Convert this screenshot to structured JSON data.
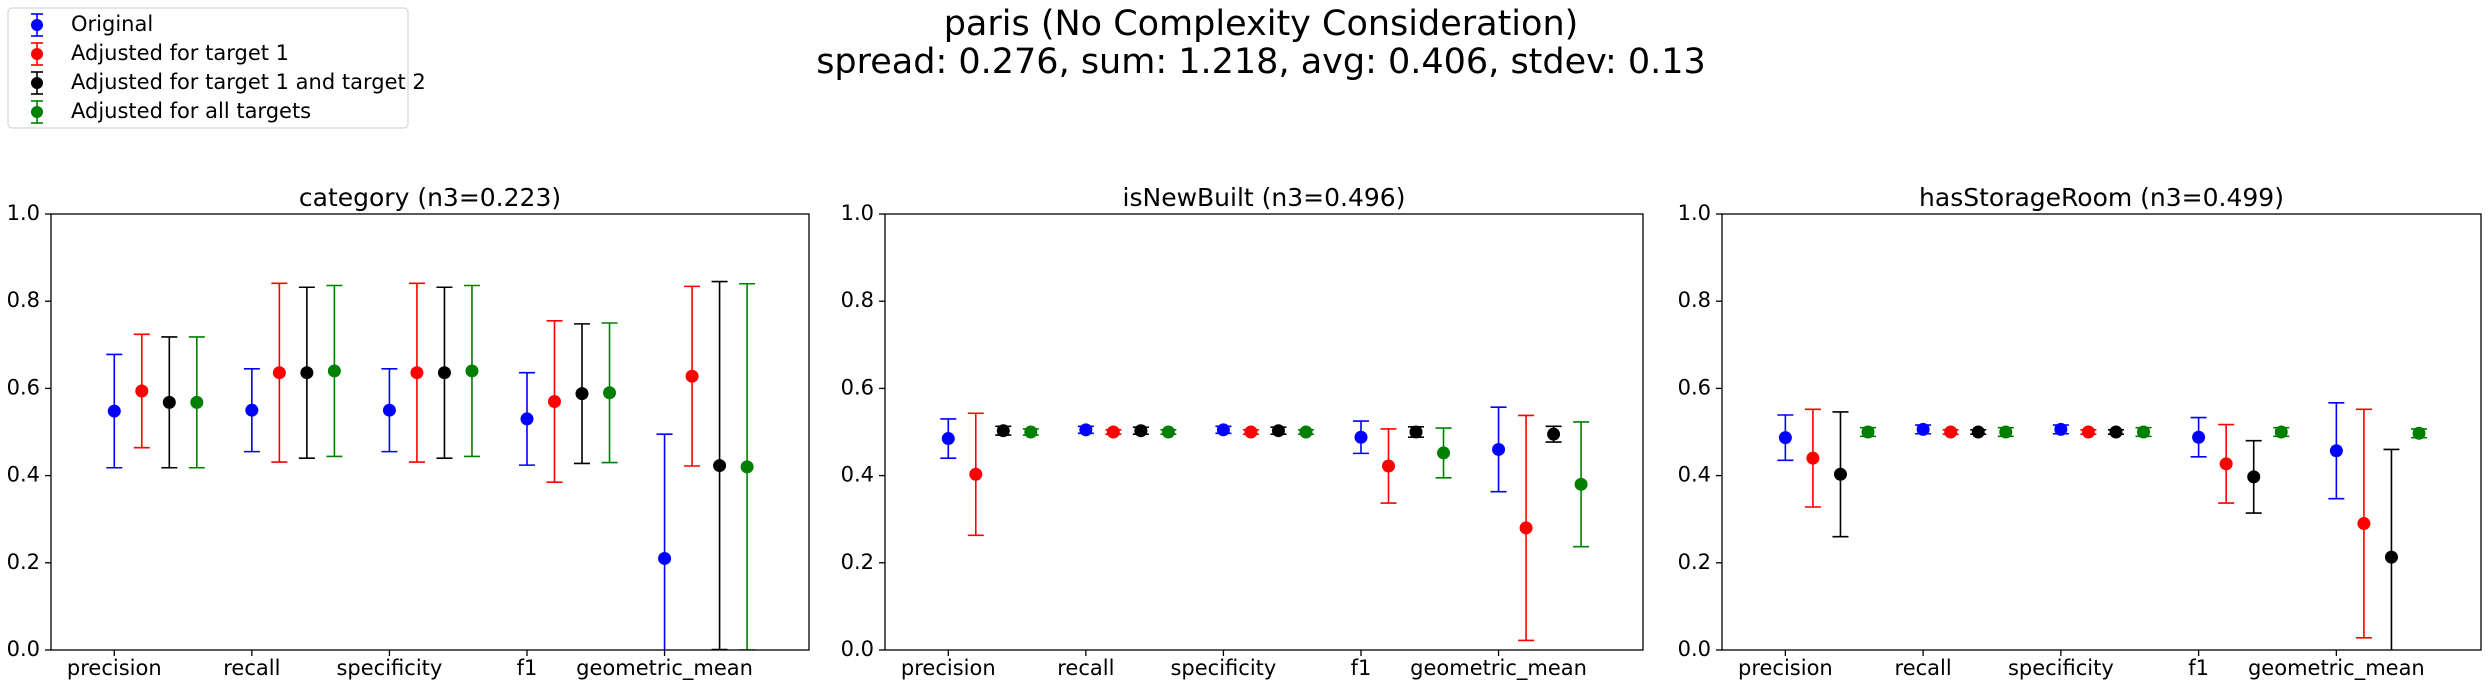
{
  "title": "paris (No Complexity Consideration)",
  "subtitle": "spread: 0.276, sum: 1.218, avg: 0.406, stdev: 0.13",
  "legend": [
    {
      "name": "Original",
      "color": "#0000ff"
    },
    {
      "name": "Adjusted for target 1",
      "color": "#ff0000"
    },
    {
      "name": "Adjusted for target 1 and target 2",
      "color": "#000000"
    },
    {
      "name": "Adjusted for all targets",
      "color": "#008000"
    }
  ],
  "chart_data": [
    {
      "type": "errorbar",
      "title": "category (n3=0.223)",
      "categories": [
        "precision",
        "recall",
        "specificity",
        "f1",
        "geometric_mean"
      ],
      "ylim": [
        0,
        1
      ],
      "yticks": [
        {
          "value": 0,
          "label": "0.0"
        },
        0.2,
        0.4,
        0.6,
        0.8,
        {
          "value": 1,
          "label": "1.0"
        }
      ],
      "series": [
        {
          "values": [
            0.548,
            0.55,
            0.55,
            0.53,
            0.21
          ],
          "errors": [
            0.13,
            0.095,
            0.095,
            0.106,
            0.285
          ]
        },
        {
          "values": [
            0.594,
            0.636,
            0.636,
            0.57,
            0.628
          ],
          "errors": [
            0.13,
            0.205,
            0.205,
            0.185,
            0.206
          ]
        },
        {
          "values": [
            0.568,
            0.636,
            0.636,
            0.588,
            0.423
          ],
          "errors": [
            0.15,
            0.196,
            0.196,
            0.16,
            0.422
          ]
        },
        {
          "values": [
            0.568,
            0.64,
            0.64,
            0.59,
            0.42
          ],
          "errors": [
            0.15,
            0.196,
            0.196,
            0.16,
            0.42
          ]
        }
      ]
    },
    {
      "type": "errorbar",
      "title": "isNewBuilt (n3=0.496)",
      "categories": [
        "precision",
        "recall",
        "specificity",
        "f1",
        "geometric_mean"
      ],
      "ylim": [
        0,
        1
      ],
      "yticks": [
        {
          "value": 0,
          "label": "0.0"
        },
        0.2,
        0.4,
        0.6,
        0.8,
        {
          "value": 1,
          "label": "1.0"
        }
      ],
      "series": [
        {
          "values": [
            0.485,
            0.505,
            0.505,
            0.488,
            0.46
          ],
          "errors": [
            0.045,
            0.008,
            0.008,
            0.037,
            0.097
          ]
        },
        {
          "values": [
            0.403,
            0.5,
            0.5,
            0.422,
            0.28
          ],
          "errors": [
            0.14,
            0.005,
            0.005,
            0.085,
            0.258
          ]
        },
        {
          "values": [
            0.503,
            0.503,
            0.503,
            0.5,
            0.495
          ],
          "errors": [
            0.01,
            0.008,
            0.008,
            0.012,
            0.018
          ]
        },
        {
          "values": [
            0.5,
            0.5,
            0.5,
            0.452,
            0.38
          ],
          "errors": [
            0.007,
            0.005,
            0.005,
            0.057,
            0.143
          ]
        }
      ]
    },
    {
      "type": "errorbar",
      "title": "hasStorageRoom (n3=0.499)",
      "categories": [
        "precision",
        "recall",
        "specificity",
        "f1",
        "geometric_mean"
      ],
      "ylim": [
        0,
        1
      ],
      "yticks": [
        {
          "value": 0,
          "label": "0.0"
        },
        0.2,
        0.4,
        0.6,
        0.8,
        {
          "value": 1,
          "label": "1.0"
        }
      ],
      "series": [
        {
          "values": [
            0.487,
            0.506,
            0.506,
            0.488,
            0.457
          ],
          "errors": [
            0.052,
            0.01,
            0.01,
            0.045,
            0.11
          ]
        },
        {
          "values": [
            0.44,
            0.5,
            0.5,
            0.427,
            0.29
          ],
          "errors": [
            0.112,
            0.005,
            0.005,
            0.09,
            0.262
          ]
        },
        {
          "values": [
            0.403,
            0.5,
            0.5,
            0.397,
            0.213
          ],
          "errors": [
            0.143,
            0.005,
            0.005,
            0.083,
            0.247
          ]
        },
        {
          "values": [
            0.5,
            0.5,
            0.5,
            0.5,
            0.497
          ],
          "errors": [
            0.01,
            0.01,
            0.01,
            0.01,
            0.01
          ]
        }
      ]
    }
  ]
}
